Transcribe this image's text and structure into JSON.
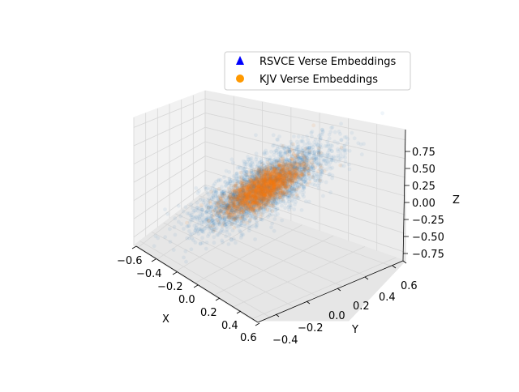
{
  "chart_data": {
    "type": "scatter",
    "projection": "3d",
    "title": "",
    "xlabel": "X",
    "ylabel": "Y",
    "zlabel": "Z",
    "xlim": [
      -0.6,
      0.6
    ],
    "ylim": [
      -0.45,
      0.6
    ],
    "zlim": [
      -0.8,
      0.8
    ],
    "x_ticks": [
      "−0.6",
      "−0.4",
      "−0.2",
      "0.0",
      "0.2",
      "0.4",
      "0.6"
    ],
    "y_ticks": [
      "−0.4",
      "−0.2",
      "0.0",
      "0.2",
      "0.4",
      "0.6"
    ],
    "z_ticks": [
      "−0.75",
      "−0.50",
      "−0.25",
      "0.00",
      "0.25",
      "0.50",
      "0.75"
    ],
    "grid": true,
    "legend_position": "upper-right",
    "series": [
      {
        "name": "RSVCE Verse Embeddings",
        "legend_marker": "triangle",
        "legend_color": "#0000ff",
        "point_color": "#1f77b4",
        "distribution": "gaussian cloud centered near origin",
        "spread": [
          0.18,
          0.18,
          0.14
        ]
      },
      {
        "name": "KJV Verse Embeddings",
        "legend_marker": "circle",
        "legend_color": "#ff9900",
        "point_color": "#ff7f0e",
        "distribution": "gaussian cloud centered near origin",
        "spread": [
          0.11,
          0.11,
          0.09
        ]
      }
    ]
  }
}
